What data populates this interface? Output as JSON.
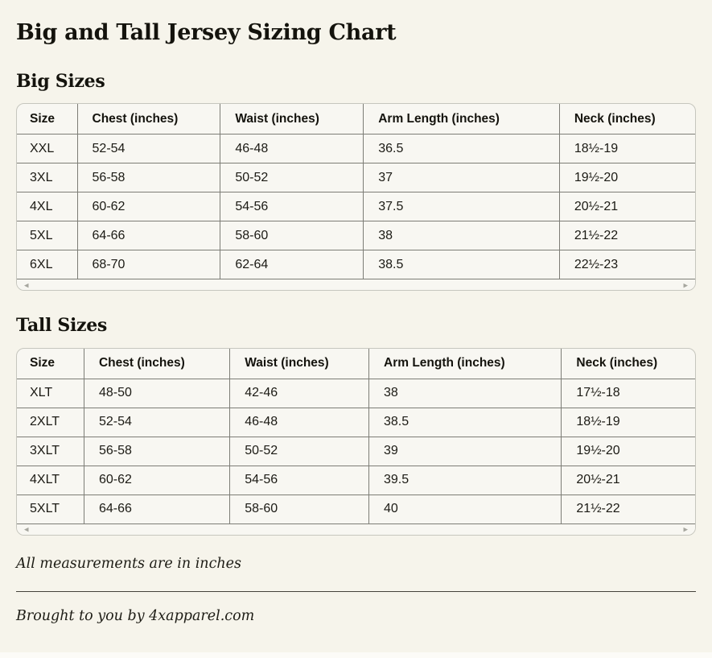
{
  "page": {
    "title": "Big and Tall Jersey Sizing Chart",
    "footnote": "All measurements are in inches",
    "credit": "Brought to you by 4xapparel.com"
  },
  "colors": {
    "page_background": "#f6f4eb",
    "table_background": "#f8f7f2",
    "inner_border": "#7d7d76",
    "outer_border": "#c6c6be",
    "text": "#17160f",
    "scroll_arrow": "#a6a69e"
  },
  "icons": {
    "scroll_left": "◂",
    "scroll_right": "▸"
  },
  "tables": [
    {
      "section_title": "Big Sizes",
      "headers": [
        "Size",
        "Chest (inches)",
        "Waist (inches)",
        "Arm Length (inches)",
        "Neck (inches)"
      ],
      "rows": [
        [
          "XXL",
          "52-54",
          "46-48",
          "36.5",
          "18½-19"
        ],
        [
          "3XL",
          "56-58",
          "50-52",
          "37",
          "19½-20"
        ],
        [
          "4XL",
          "60-62",
          "54-56",
          "37.5",
          "20½-21"
        ],
        [
          "5XL",
          "64-66",
          "58-60",
          "38",
          "21½-22"
        ],
        [
          "6XL",
          "68-70",
          "62-64",
          "38.5",
          "22½-23"
        ]
      ]
    },
    {
      "section_title": "Tall Sizes",
      "headers": [
        "Size",
        "Chest (inches)",
        "Waist (inches)",
        "Arm Length (inches)",
        "Neck (inches)"
      ],
      "rows": [
        [
          "XLT",
          "48-50",
          "42-46",
          "38",
          "17½-18"
        ],
        [
          "2XLT",
          "52-54",
          "46-48",
          "38.5",
          "18½-19"
        ],
        [
          "3XLT",
          "56-58",
          "50-52",
          "39",
          "19½-20"
        ],
        [
          "4XLT",
          "60-62",
          "54-56",
          "39.5",
          "20½-21"
        ],
        [
          "5XLT",
          "64-66",
          "58-60",
          "40",
          "21½-22"
        ]
      ]
    }
  ]
}
